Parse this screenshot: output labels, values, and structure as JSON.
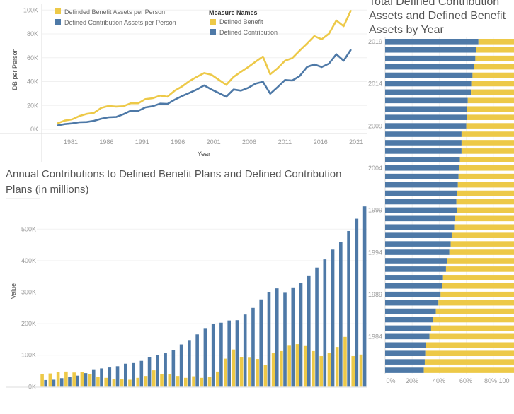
{
  "colors": {
    "defined_benefit": "#EDC948",
    "defined_contribution": "#4E79A7"
  },
  "chart_data": [
    {
      "type": "line",
      "title": "",
      "xlabel": "Year",
      "ylabel": "DB per Person",
      "x_ticks": [
        "1981",
        "1986",
        "1991",
        "1996",
        "2001",
        "2006",
        "2011",
        "2016",
        "2021"
      ],
      "y_ticks": [
        "0K",
        "20K",
        "40K",
        "60K",
        "80K",
        "100K"
      ],
      "ylim": [
        0,
        100000
      ],
      "grid": true,
      "legends": [
        {
          "entries": [
            "Definded Benefit Assets per Person",
            "Defined Contribution Assets per Person"
          ],
          "placement": "top-left"
        },
        {
          "title": "Measure Names",
          "entries": [
            "Defined Benefit",
            "Defined Contribution"
          ],
          "placement": "top-center"
        }
      ],
      "x": [
        1979,
        1980,
        1981,
        1982,
        1983,
        1984,
        1985,
        1986,
        1987,
        1988,
        1989,
        1990,
        1991,
        1992,
        1993,
        1994,
        1995,
        1996,
        1997,
        1998,
        1999,
        2000,
        2001,
        2002,
        2003,
        2004,
        2005,
        2006,
        2007,
        2008,
        2009,
        2010,
        2011,
        2012,
        2013,
        2014,
        2015,
        2016,
        2017,
        2018,
        2019
      ],
      "series": [
        {
          "name": "Defined Benefit",
          "values": [
            4900,
            7300,
            8300,
            11100,
            12900,
            13800,
            18000,
            19600,
            19000,
            19400,
            21800,
            21800,
            25300,
            26100,
            28300,
            27300,
            32400,
            36000,
            40500,
            44000,
            47200,
            45700,
            41500,
            37300,
            43900,
            48200,
            52200,
            56700,
            61000,
            46200,
            51200,
            57500,
            59700,
            66000,
            71900,
            78200,
            75500,
            80200,
            91300,
            86500,
            100000
          ]
        },
        {
          "name": "Defined Contribution",
          "values": [
            3200,
            4300,
            4900,
            5900,
            6100,
            7100,
            8900,
            10100,
            10300,
            12600,
            15600,
            15400,
            18400,
            19400,
            21500,
            21300,
            24900,
            27900,
            30600,
            33400,
            36800,
            33400,
            30400,
            27300,
            33400,
            32400,
            34800,
            38300,
            39900,
            29800,
            35400,
            41300,
            40900,
            44600,
            52200,
            54500,
            52200,
            55100,
            63000,
            57500,
            67000
          ]
        }
      ]
    },
    {
      "type": "bar",
      "title": "Annual Contributions to Defined Benefit Plans and Defined Contribution Plans (in millions)",
      "xlabel": "",
      "ylabel": "Value",
      "y_ticks": [
        "0K",
        "100K",
        "200K",
        "300K",
        "400K",
        "500K"
      ],
      "ylim": [
        0,
        580000
      ],
      "grid": true,
      "categories": [
        1979,
        1980,
        1981,
        1982,
        1983,
        1984,
        1985,
        1986,
        1987,
        1988,
        1989,
        1990,
        1991,
        1992,
        1993,
        1994,
        1995,
        1996,
        1997,
        1998,
        1999,
        2000,
        2001,
        2002,
        2003,
        2004,
        2005,
        2006,
        2007,
        2008,
        2009,
        2010,
        2011,
        2012,
        2013,
        2014,
        2015,
        2016,
        2017,
        2018,
        2019
      ],
      "series": [
        {
          "values": [
            40000,
            42000,
            46000,
            48000,
            45000,
            46000,
            41000,
            32000,
            28000,
            25000,
            23000,
            22000,
            28000,
            34000,
            52000,
            39000,
            40000,
            34000,
            28000,
            33000,
            28000,
            32000,
            48000,
            89000,
            118000,
            93000,
            92000,
            88000,
            68000,
            106000,
            113000,
            130000,
            135000,
            129000,
            113000,
            97000,
            108000,
            126000,
            158000,
            97000,
            102000
          ]
        },
        {
          "values": [
            21000,
            22000,
            27000,
            30000,
            35000,
            43000,
            53000,
            58000,
            61000,
            65000,
            73000,
            75000,
            82000,
            93000,
            101000,
            106000,
            117000,
            134000,
            148000,
            166000,
            186000,
            198000,
            203000,
            210000,
            211000,
            229000,
            250000,
            277000,
            300000,
            312000,
            298000,
            315000,
            330000,
            353000,
            378000,
            404000,
            435000,
            460000,
            494000,
            533000,
            572000
          ]
        }
      ]
    },
    {
      "type": "bar",
      "orientation": "horizontal",
      "stacked_percent": true,
      "title_lines": [
        "Total Defined Contribution",
        "Assets and Defined Benefit",
        "Assets by Year"
      ],
      "x_ticks": [
        "0%",
        "20%",
        "40%",
        "60%",
        "80%",
        "100"
      ],
      "y_tick_labels": [
        "2019",
        "2014",
        "2009",
        "2004",
        "1999",
        "1994",
        "1989",
        "1984"
      ],
      "categories": [
        2019,
        2018,
        2017,
        2016,
        2015,
        2014,
        2013,
        2012,
        2011,
        2010,
        2009,
        2008,
        2007,
        2006,
        2005,
        2004,
        2003,
        2002,
        2001,
        2000,
        1999,
        1998,
        1997,
        1996,
        1995,
        1994,
        1993,
        1992,
        1991,
        1990,
        1989,
        1988,
        1987,
        1986,
        1985,
        1984,
        1983,
        1982,
        1981,
        1980
      ],
      "series": [
        {
          "name": "Defined Contribution",
          "values": [
            69.0,
            67.5,
            66.7,
            65.8,
            64.6,
            63.7,
            63.4,
            61.1,
            60.6,
            60.7,
            60.0,
            56.5,
            56.5,
            56.5,
            55.3,
            54.8,
            54.3,
            53.8,
            53.4,
            52.7,
            53.2,
            51.7,
            51.1,
            49.2,
            48.5,
            47.5,
            45.9,
            45.0,
            42.8,
            42.2,
            41.0,
            39.4,
            37.5,
            35.1,
            34.0,
            32.8,
            30.2,
            29.7,
            29.3,
            28.6
          ]
        },
        {
          "name": "Defined Benefit",
          "values": [
            31.0,
            32.5,
            33.3,
            34.2,
            35.4,
            36.3,
            36.6,
            38.9,
            39.4,
            39.3,
            40.0,
            43.5,
            43.5,
            43.5,
            44.7,
            45.2,
            45.7,
            46.2,
            46.6,
            47.3,
            46.8,
            48.3,
            48.9,
            50.8,
            51.5,
            52.5,
            54.1,
            55.0,
            57.2,
            57.8,
            59.0,
            60.6,
            62.5,
            64.9,
            66.0,
            67.2,
            69.8,
            70.3,
            70.7,
            71.4
          ]
        }
      ]
    }
  ]
}
